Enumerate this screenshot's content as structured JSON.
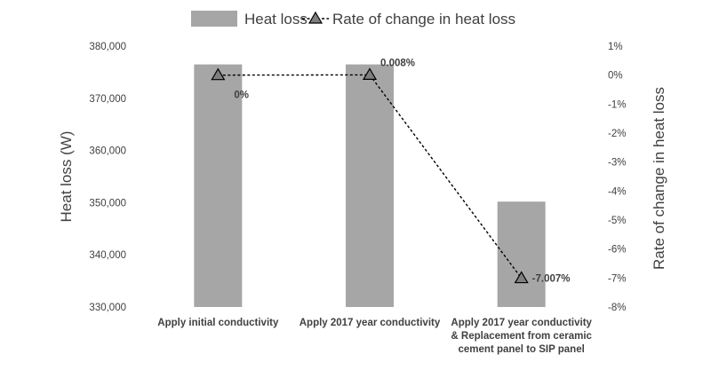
{
  "chart_data": {
    "type": "bar",
    "categories": [
      [
        "Apply initial conductivity"
      ],
      [
        "Apply 2017 year conductivity"
      ],
      [
        "Apply 2017 year conductivity",
        "& Replacement from ceramic",
        "cement panel to SIP panel"
      ]
    ],
    "series": [
      {
        "name": "Heat loss",
        "type": "bar",
        "axis": "left",
        "values": [
          376500,
          376500,
          350200
        ],
        "color": "#a6a6a6"
      },
      {
        "name": "Rate of change in heat loss",
        "type": "line",
        "axis": "right",
        "values": [
          0,
          0.008,
          -7.007
        ],
        "data_labels": [
          "0%",
          "0.008%",
          "-7.007%"
        ],
        "line_style": "dashed",
        "marker": "triangle",
        "color": "#000000",
        "marker_fill": "#7f7f7f"
      }
    ],
    "ylabel": "Heat loss (W)",
    "y2label": "Rate of change in heat loss",
    "ylim": [
      330000,
      380000
    ],
    "yticks": [
      330000,
      340000,
      350000,
      360000,
      370000,
      380000
    ],
    "ytick_labels": [
      "330,000",
      "340,000",
      "350,000",
      "360,000",
      "370,000",
      "380,000"
    ],
    "y2lim": [
      -8,
      1
    ],
    "y2ticks": [
      1,
      0,
      -1,
      -2,
      -3,
      -4,
      -5,
      -6,
      -7,
      -8
    ],
    "y2tick_labels": [
      "1%",
      "0%",
      "-1%",
      "-2%",
      "-3%",
      "-4%",
      "-5%",
      "-6%",
      "-7%",
      "-8%"
    ],
    "grid": false,
    "legend_position": "top-center"
  }
}
